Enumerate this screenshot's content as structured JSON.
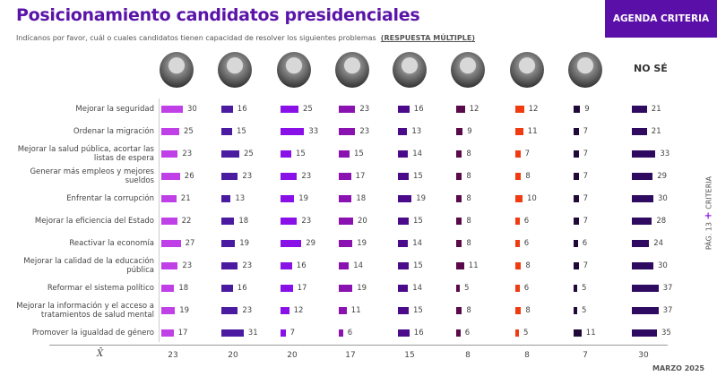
{
  "header": {
    "title": "Posicionamiento candidatos presidenciales",
    "subtitle": "Indícanos por favor, cuál o cuales candidatos tienen capacidad de resolver los siguientes problemas",
    "subtitle_note": "(RESPUESTA MÚLTIPLE)",
    "brand": "AGENDA CRITERIA"
  },
  "footer": {
    "page": "PÁG. 13",
    "plus": "+",
    "brand": "CRITERIA",
    "date": "MARZO 2025"
  },
  "chart_data": {
    "type": "bar",
    "orientation": "horizontal",
    "column_headers": [
      "photo",
      "photo",
      "photo",
      "photo",
      "photo",
      "photo",
      "photo",
      "photo",
      "NO SÉ"
    ],
    "colors": [
      "#c040e8",
      "#4a1aa0",
      "#8a10e8",
      "#8a12b0",
      "#4a0a8a",
      "#5a0a4a",
      "#f03a10",
      "#200838",
      "#2e0a60"
    ],
    "categories": [
      "Mejorar la seguridad",
      "Ordenar la migración",
      "Mejorar la salud pública, acortar las listas de espera",
      "Generar más empleos y mejores sueldos",
      "Enfrentar la corrupción",
      "Mejorar la eficiencia del Estado",
      "Reactivar la economía",
      "Mejorar la calidad de la educación pública",
      "Reformar el sistema político",
      "Mejorar la información y el acceso a tratamientos de salud mental",
      "Promover la igualdad de género"
    ],
    "values": [
      [
        30,
        16,
        25,
        23,
        16,
        12,
        12,
        9,
        21
      ],
      [
        25,
        15,
        33,
        23,
        13,
        9,
        11,
        7,
        21
      ],
      [
        23,
        25,
        15,
        15,
        14,
        8,
        7,
        7,
        33
      ],
      [
        26,
        23,
        23,
        17,
        15,
        8,
        8,
        7,
        29
      ],
      [
        21,
        13,
        19,
        18,
        19,
        8,
        10,
        7,
        30
      ],
      [
        22,
        18,
        23,
        20,
        15,
        8,
        6,
        7,
        28
      ],
      [
        27,
        19,
        29,
        19,
        14,
        8,
        6,
        6,
        24
      ],
      [
        23,
        23,
        16,
        14,
        15,
        11,
        8,
        7,
        30
      ],
      [
        18,
        16,
        17,
        19,
        14,
        5,
        6,
        5,
        37
      ],
      [
        19,
        23,
        12,
        11,
        15,
        8,
        8,
        5,
        37
      ],
      [
        17,
        31,
        7,
        6,
        16,
        6,
        5,
        11,
        35
      ]
    ],
    "mean_label": "X̄",
    "mean": [
      23,
      20,
      20,
      17,
      15,
      8,
      8,
      7,
      30
    ]
  }
}
